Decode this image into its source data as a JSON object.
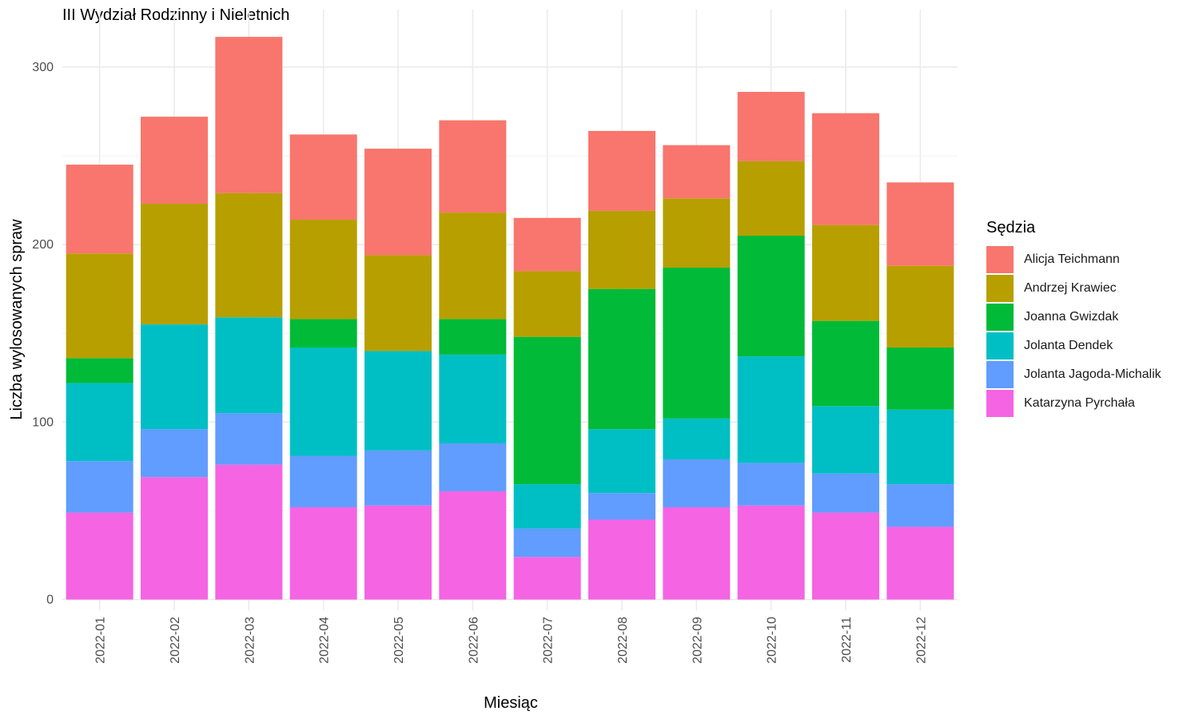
{
  "chart_data": {
    "type": "bar",
    "stacked": true,
    "title": "III Wydział Rodzinny i Nieletnich",
    "xlabel": "Miesiąc",
    "ylabel": "Liczba wylosowanych spraw",
    "ylim": [
      0,
      320
    ],
    "yticks": [
      0,
      100,
      200,
      300
    ],
    "grid": true,
    "legend_title": "Sędzia",
    "legend_position": "right",
    "categories": [
      "2022-01",
      "2022-02",
      "2022-03",
      "2022-04",
      "2022-05",
      "2022-06",
      "2022-07",
      "2022-08",
      "2022-09",
      "2022-10",
      "2022-11",
      "2022-12"
    ],
    "series": [
      {
        "name": "Katarzyna Pyrchała",
        "color": "#F564E3",
        "values": [
          49,
          69,
          76,
          52,
          53,
          61,
          24,
          45,
          52,
          53,
          49,
          41
        ]
      },
      {
        "name": "Jolanta Jagoda-Michalik",
        "color": "#619CFF",
        "values": [
          29,
          27,
          29,
          29,
          31,
          27,
          16,
          15,
          27,
          24,
          22,
          24
        ]
      },
      {
        "name": "Jolanta Dendek",
        "color": "#00BFC4",
        "values": [
          44,
          59,
          54,
          61,
          56,
          50,
          25,
          36,
          23,
          60,
          38,
          42
        ]
      },
      {
        "name": "Joanna Gwizdak",
        "color": "#00BA38",
        "values": [
          14,
          0,
          0,
          16,
          0,
          20,
          83,
          79,
          85,
          68,
          48,
          35
        ]
      },
      {
        "name": "Andrzej Krawiec",
        "color": "#B79F00",
        "values": [
          59,
          68,
          70,
          56,
          54,
          60,
          37,
          44,
          39,
          42,
          54,
          46
        ]
      },
      {
        "name": "Alicja Teichmann",
        "color": "#F8766D",
        "values": [
          50,
          49,
          88,
          48,
          60,
          52,
          30,
          45,
          30,
          39,
          63,
          47
        ]
      }
    ],
    "legend_order": [
      "Alicja Teichmann",
      "Andrzej Krawiec",
      "Joanna Gwizdak",
      "Jolanta Dendek",
      "Jolanta Jagoda-Michalik",
      "Katarzyna Pyrchała"
    ]
  }
}
